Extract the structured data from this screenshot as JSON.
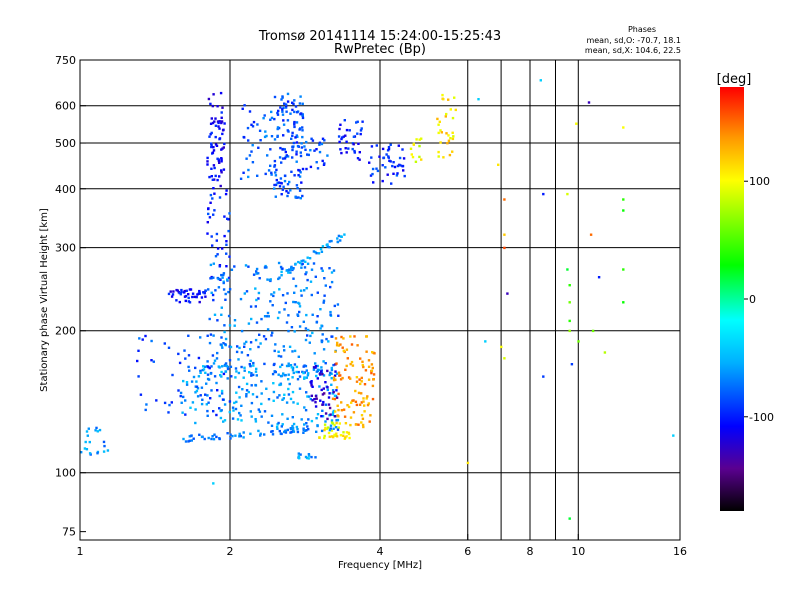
{
  "chart_data": {
    "type": "scatter",
    "title": "Tromsø 20141114 15:24:00-15:25:43",
    "subtitle": "RwPretec (Bp)",
    "xlabel": "Frequency [MHz]",
    "ylabel": "Stationary phase Virtual Height [km]",
    "x_scale": "log",
    "y_scale": "log",
    "xlim": [
      1,
      16
    ],
    "ylim": [
      72,
      750
    ],
    "x_ticks": [
      1,
      2,
      4,
      6,
      8,
      10,
      16
    ],
    "x_grid": [
      2,
      4,
      6,
      7,
      8,
      9,
      10
    ],
    "y_ticks": [
      75,
      100,
      200,
      300,
      400,
      500,
      600,
      750
    ],
    "y_grid": [
      100,
      200,
      300,
      400,
      500,
      600
    ],
    "grid": true,
    "legend": {
      "title": "Phases",
      "lines": [
        "mean, sd,O: -70.7, 18.1",
        "mean, sd,X: 104.6, 22.5"
      ],
      "placement": "top-right"
    },
    "colorbar": {
      "label": "[deg]",
      "ticks": [
        100,
        0,
        -100
      ],
      "range": [
        -180,
        180
      ],
      "placement": "right"
    },
    "colors": {
      "background": "#ffffff",
      "axes": "#000000",
      "grid": "#000000"
    },
    "clusters": [
      {
        "x": [
          1.8,
          1.95
        ],
        "y": [
          400,
          640
        ],
        "phase": -110,
        "n": 70
      },
      {
        "x": [
          2.45,
          2.8
        ],
        "y": [
          380,
          640
        ],
        "phase": -85,
        "n": 140
      },
      {
        "x": [
          2.1,
          2.45
        ],
        "y": [
          420,
          620
        ],
        "phase": -80,
        "n": 40
      },
      {
        "x": [
          2.8,
          3.2
        ],
        "y": [
          440,
          520
        ],
        "phase": -85,
        "n": 25
      },
      {
        "x": [
          3.3,
          3.7
        ],
        "y": [
          460,
          560
        ],
        "phase": -100,
        "n": 35
      },
      {
        "x": [
          3.8,
          4.5
        ],
        "y": [
          410,
          500
        ],
        "phase": -95,
        "n": 45
      },
      {
        "x": [
          4.6,
          4.85
        ],
        "y": [
          440,
          520
        ],
        "phase": 95,
        "n": 12
      },
      {
        "x": [
          5.2,
          5.7
        ],
        "y": [
          460,
          640
        ],
        "phase": 110,
        "n": 30
      },
      {
        "x": [
          1.8,
          2.0
        ],
        "y": [
          255,
          400
        ],
        "phase": -95,
        "n": 45
      },
      {
        "x": [
          1.5,
          1.85
        ],
        "y": [
          230,
          245
        ],
        "phase": -105,
        "n": 45
      },
      {
        "x": [
          1.8,
          3.3
        ],
        "y": [
          160,
          280
        ],
        "phase": -70,
        "n": 260
      },
      {
        "x": [
          1.6,
          3.3
        ],
        "y": [
          125,
          170
        ],
        "phase": -60,
        "n": 220
      },
      {
        "x": [
          1.3,
          2.0
        ],
        "y": [
          130,
          200
        ],
        "phase": -85,
        "n": 60
      },
      {
        "x": [
          1.0,
          1.15
        ],
        "y": [
          108,
          125
        ],
        "phase": -65,
        "n": 20
      },
      {
        "x": [
          2.7,
          3.0
        ],
        "y": [
          107,
          110
        ],
        "phase": -60,
        "n": 12
      },
      {
        "x": [
          2.9,
          3.3
        ],
        "y": [
          130,
          170
        ],
        "phase": -125,
        "n": 45
      },
      {
        "x": [
          3.2,
          3.9
        ],
        "y": [
          125,
          195
        ],
        "phase": 135,
        "n": 110
      },
      {
        "x": [
          3.0,
          3.5
        ],
        "y": [
          118,
          128
        ],
        "phase": 100,
        "n": 35
      }
    ],
    "streaks": [
      {
        "x": [
          1.6,
          3.3
        ],
        "y": [
          118,
          125
        ],
        "phase": -70,
        "n": 75
      },
      {
        "x": [
          2.4,
          3.4
        ],
        "y": [
          255,
          320
        ],
        "phase": -60,
        "n": 45
      }
    ],
    "points": [
      {
        "x": 1.85,
        "y": 95,
        "phase": -40
      },
      {
        "x": 6.0,
        "y": 105,
        "phase": 110
      },
      {
        "x": 6.3,
        "y": 620,
        "phase": -40
      },
      {
        "x": 6.5,
        "y": 190,
        "phase": -40
      },
      {
        "x": 6.9,
        "y": 450,
        "phase": 110
      },
      {
        "x": 7.1,
        "y": 380,
        "phase": 150
      },
      {
        "x": 7.1,
        "y": 320,
        "phase": 120
      },
      {
        "x": 7.1,
        "y": 300,
        "phase": 160
      },
      {
        "x": 7.2,
        "y": 240,
        "phase": -130
      },
      {
        "x": 7.0,
        "y": 185,
        "phase": 100
      },
      {
        "x": 7.1,
        "y": 175,
        "phase": 90
      },
      {
        "x": 8.4,
        "y": 680,
        "phase": -40
      },
      {
        "x": 8.5,
        "y": 390,
        "phase": -100
      },
      {
        "x": 8.5,
        "y": 160,
        "phase": -90
      },
      {
        "x": 9.5,
        "y": 390,
        "phase": 90
      },
      {
        "x": 9.5,
        "y": 270,
        "phase": 20
      },
      {
        "x": 9.6,
        "y": 250,
        "phase": 40
      },
      {
        "x": 9.6,
        "y": 230,
        "phase": 60
      },
      {
        "x": 9.6,
        "y": 210,
        "phase": 40
      },
      {
        "x": 9.6,
        "y": 200,
        "phase": 70
      },
      {
        "x": 9.7,
        "y": 170,
        "phase": -90
      },
      {
        "x": 9.6,
        "y": 80,
        "phase": 20
      },
      {
        "x": 9.9,
        "y": 550,
        "phase": 100
      },
      {
        "x": 10.0,
        "y": 190,
        "phase": 60
      },
      {
        "x": 10.5,
        "y": 610,
        "phase": -130
      },
      {
        "x": 10.6,
        "y": 320,
        "phase": 150
      },
      {
        "x": 10.7,
        "y": 200,
        "phase": 60
      },
      {
        "x": 11.0,
        "y": 260,
        "phase": -100
      },
      {
        "x": 11.3,
        "y": 180,
        "phase": 80
      },
      {
        "x": 12.3,
        "y": 540,
        "phase": 100
      },
      {
        "x": 12.3,
        "y": 380,
        "phase": 40
      },
      {
        "x": 12.3,
        "y": 360,
        "phase": 30
      },
      {
        "x": 12.3,
        "y": 270,
        "phase": 40
      },
      {
        "x": 12.3,
        "y": 230,
        "phase": 30
      },
      {
        "x": 15.5,
        "y": 120,
        "phase": -40
      }
    ]
  }
}
